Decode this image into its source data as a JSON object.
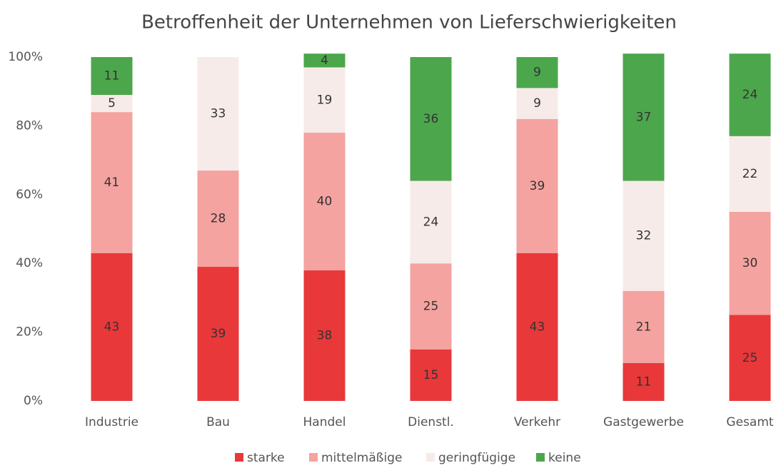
{
  "chart_data": {
    "type": "stacked_bar",
    "title": "Betroffenheit der Unternehmen von Lieferschwierigkeiten",
    "categories": [
      "Industrie",
      "Bau",
      "Handel",
      "Dienstl.",
      "Verkehr",
      "Gastgewerbe",
      "Gesamt"
    ],
    "series": [
      {
        "name": "starke",
        "color": "#e8383a",
        "values": [
          43,
          39,
          38,
          15,
          43,
          11,
          25
        ]
      },
      {
        "name": "mittelmäßige",
        "color": "#f4a3a0",
        "values": [
          41,
          28,
          40,
          25,
          39,
          21,
          30
        ]
      },
      {
        "name": "geringfügige",
        "color": "#f7ebe9",
        "values": [
          5,
          33,
          19,
          24,
          9,
          32,
          22
        ]
      },
      {
        "name": "keine",
        "color": "#4ca64c",
        "values": [
          11,
          null,
          4,
          36,
          9,
          37,
          24
        ]
      }
    ],
    "ylim": [
      0,
      100
    ],
    "yticks": [
      {
        "value": 0,
        "label": "0%"
      },
      {
        "value": 20,
        "label": "20%"
      },
      {
        "value": 40,
        "label": "40%"
      },
      {
        "value": 60,
        "label": "60%"
      },
      {
        "value": 80,
        "label": "80%"
      },
      {
        "value": 100,
        "label": "100%"
      }
    ],
    "legend": "bottom"
  }
}
